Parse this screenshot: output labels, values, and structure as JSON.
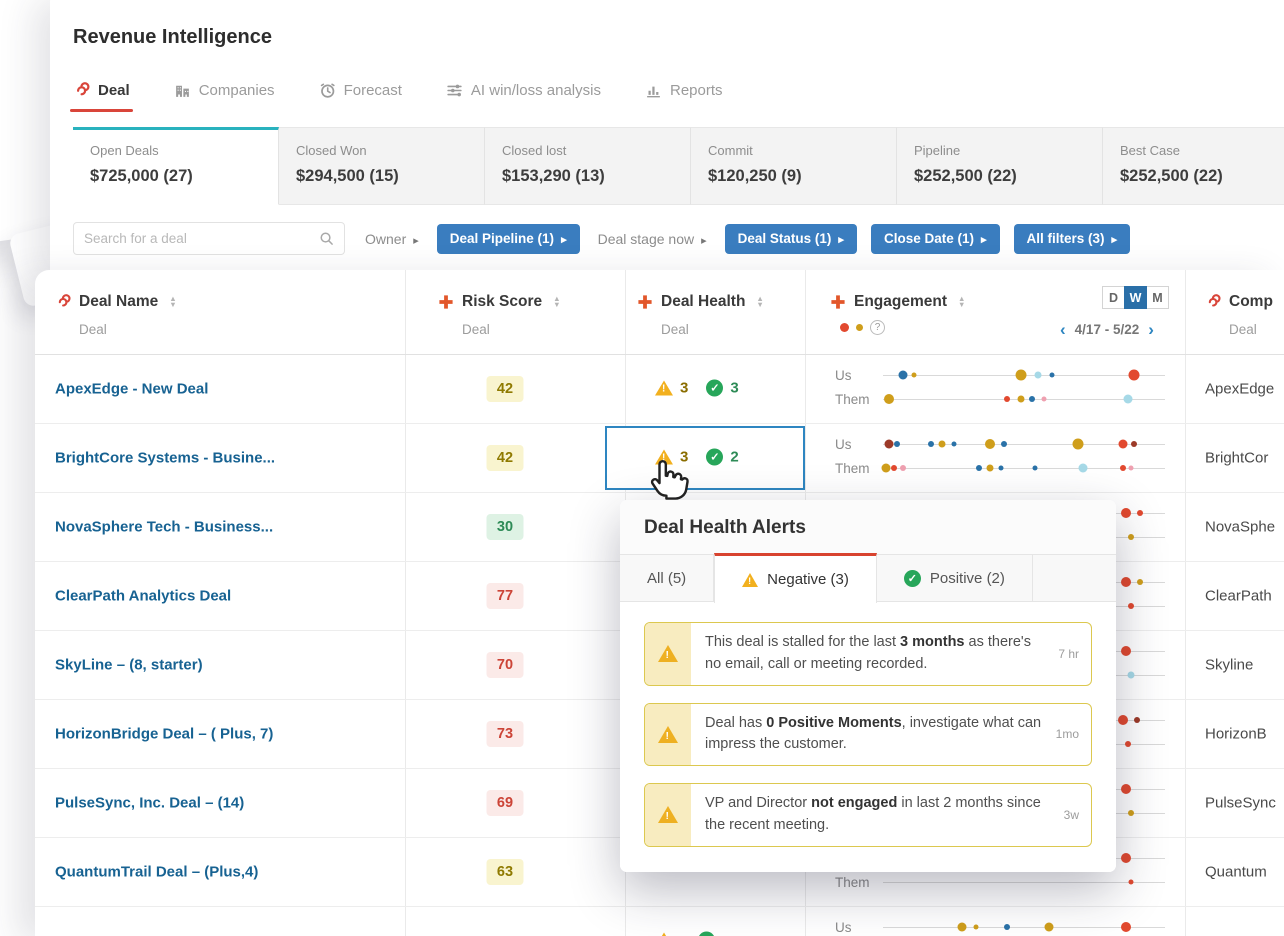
{
  "app": {
    "title": "Revenue Intelligence"
  },
  "nav_tabs": [
    {
      "label": "Deal",
      "icon": "deal-icon",
      "active": true
    },
    {
      "label": "Companies",
      "icon": "companies-icon",
      "active": false
    },
    {
      "label": "Forecast",
      "icon": "forecast-icon",
      "active": false
    },
    {
      "label": "AI win/loss analysis",
      "icon": "ai-winloss-icon",
      "active": false
    },
    {
      "label": "Reports",
      "icon": "reports-icon",
      "active": false
    }
  ],
  "summary_cards": [
    {
      "label": "Open Deals",
      "value": "$725,000 (27)",
      "active": true
    },
    {
      "label": "Closed Won",
      "value": "$294,500 (15)",
      "active": false
    },
    {
      "label": "Closed lost",
      "value": "$153,290 (13)",
      "active": false
    },
    {
      "label": "Commit",
      "value": "$120,250 (9)",
      "active": false
    },
    {
      "label": "Pipeline",
      "value": "$252,500 (22)",
      "active": false
    },
    {
      "label": "Best Case",
      "value": "$252,500 (22)",
      "active": false
    }
  ],
  "filter_bar": {
    "search_placeholder": "Search for a deal",
    "filters": [
      {
        "label": "Owner",
        "active": false
      },
      {
        "label": "Deal Pipeline (1)",
        "active": true
      },
      {
        "label": "Deal stage now",
        "active": false
      },
      {
        "label": "Deal Status (1)",
        "active": true
      },
      {
        "label": "Close Date (1)",
        "active": true
      },
      {
        "label": "All filters (3)",
        "active": true
      }
    ]
  },
  "table": {
    "columns": [
      {
        "label": "Deal Name",
        "sub": "Deal",
        "icon": "deal-icon"
      },
      {
        "label": "Risk Score",
        "sub": "Deal",
        "icon": "plus-icon"
      },
      {
        "label": "Deal Health",
        "sub": "Deal",
        "icon": "plus-icon"
      },
      {
        "label": "Engagement",
        "sub": "",
        "icon": "plus-icon"
      },
      {
        "label": "Comp",
        "sub": "Deal",
        "icon": "deal-icon"
      }
    ],
    "engagement": {
      "toggle": [
        "D",
        "W",
        "M"
      ],
      "toggle_active": "W",
      "range": "4/17 - 5/22",
      "us_label": "Us",
      "them_label": "Them"
    },
    "rows": [
      {
        "name": "ApexEdge - New Deal",
        "risk": 42,
        "risk_level": "yellow",
        "selected": false,
        "health": {
          "neg": 3,
          "pos": 3
        },
        "company": "ApexEdge",
        "us": [
          [
            7,
            "blue",
            9
          ],
          [
            11,
            "gold",
            5
          ],
          [
            49,
            "gold",
            11
          ],
          [
            55,
            "cyan",
            7
          ],
          [
            60,
            "blue",
            5
          ],
          [
            89,
            "red",
            11
          ]
        ],
        "them": [
          [
            2,
            "gold",
            10
          ],
          [
            44,
            "red",
            6
          ],
          [
            49,
            "gold",
            7
          ],
          [
            53,
            "blue",
            6
          ],
          [
            57,
            "pink",
            5
          ],
          [
            87,
            "cyan",
            9
          ]
        ]
      },
      {
        "name": "BrightCore Systems - Busine...",
        "risk": 42,
        "risk_level": "yellow",
        "selected": true,
        "health": {
          "neg": 3,
          "pos": 2
        },
        "company": "BrightCor",
        "us": [
          [
            2,
            "darkred",
            9
          ],
          [
            5,
            "blue",
            6
          ],
          [
            17,
            "blue",
            6
          ],
          [
            21,
            "gold",
            7
          ],
          [
            25,
            "blue",
            5
          ],
          [
            38,
            "gold",
            10
          ],
          [
            43,
            "blue",
            6
          ],
          [
            69,
            "gold",
            11
          ],
          [
            85,
            "red",
            9
          ],
          [
            89,
            "darkred",
            6
          ]
        ],
        "them": [
          [
            1,
            "gold",
            9
          ],
          [
            4,
            "red",
            6
          ],
          [
            7,
            "pink",
            6
          ],
          [
            34,
            "blue",
            6
          ],
          [
            38,
            "gold",
            7
          ],
          [
            42,
            "blue",
            5
          ],
          [
            54,
            "blue",
            5
          ],
          [
            71,
            "cyan",
            9
          ],
          [
            85,
            "red",
            6
          ],
          [
            88,
            "pink",
            5
          ]
        ]
      },
      {
        "name": "NovaSphere Tech - Business...",
        "risk": 30,
        "risk_level": "green",
        "selected": false,
        "health": null,
        "company": "NovaSphe",
        "us": [
          [
            10,
            "gold",
            7
          ],
          [
            40,
            "blue",
            6
          ],
          [
            86,
            "red",
            10
          ],
          [
            91,
            "red",
            6
          ]
        ],
        "them": [
          [
            5,
            "red",
            6
          ],
          [
            50,
            "gold",
            7
          ],
          [
            88,
            "gold",
            6
          ]
        ]
      },
      {
        "name": "ClearPath Analytics Deal",
        "risk": 77,
        "risk_level": "red",
        "selected": false,
        "health": null,
        "company": "ClearPath",
        "us": [
          [
            86,
            "red",
            10
          ],
          [
            91,
            "gold",
            6
          ]
        ],
        "them": [
          [
            88,
            "red",
            6
          ]
        ]
      },
      {
        "name": "SkyLine – (8, starter)",
        "risk": 70,
        "risk_level": "red",
        "selected": false,
        "health": null,
        "company": "Skyline",
        "us": [
          [
            86,
            "red",
            10
          ]
        ],
        "them": [
          [
            88,
            "cyan",
            7
          ]
        ]
      },
      {
        "name": "HorizonBridge Deal – ( Plus, 7)",
        "risk": 73,
        "risk_level": "red",
        "selected": false,
        "health": null,
        "company": "HorizonB",
        "us": [
          [
            85,
            "red",
            10
          ],
          [
            90,
            "darkred",
            6
          ]
        ],
        "them": [
          [
            87,
            "red",
            6
          ]
        ]
      },
      {
        "name": "PulseSync, Inc. Deal – (14)",
        "risk": 69,
        "risk_level": "red",
        "selected": false,
        "health": null,
        "company": "PulseSync",
        "us": [
          [
            86,
            "red",
            10
          ]
        ],
        "them": [
          [
            88,
            "gold",
            6
          ]
        ]
      },
      {
        "name": "QuantumTrail Deal – (Plus,4)",
        "risk": 63,
        "risk_level": "yellow",
        "selected": false,
        "health": null,
        "company": "Quantum",
        "us": [
          [
            86,
            "red",
            10
          ]
        ],
        "them": [
          [
            88,
            "red",
            5
          ]
        ]
      },
      {
        "name": "",
        "risk": null,
        "risk_level": "",
        "selected": false,
        "health": {
          "neg": "",
          "pos": ""
        },
        "company": "",
        "us": [
          [
            28,
            "gold",
            9
          ],
          [
            33,
            "gold",
            5
          ],
          [
            44,
            "blue",
            6
          ],
          [
            59,
            "gold",
            9
          ],
          [
            86,
            "red",
            10
          ]
        ],
        "them": [
          [
            40,
            "blue",
            6
          ]
        ]
      }
    ]
  },
  "popup": {
    "title": "Deal Health Alerts",
    "tabs": [
      {
        "label": "All (5)",
        "icon": "",
        "active": false
      },
      {
        "label": "Negative (3)",
        "icon": "warning-icon",
        "active": true
      },
      {
        "label": "Positive (2)",
        "icon": "check-icon",
        "active": false
      }
    ],
    "alerts": [
      {
        "segments": [
          {
            "t": "This deal is stalled for the last "
          },
          {
            "t": "3 months",
            "b": true
          },
          {
            "t": " as there's no email, call or meeting recorded."
          }
        ],
        "time": "7 hr"
      },
      {
        "segments": [
          {
            "t": "Deal has "
          },
          {
            "t": "0 Positive Moments",
            "b": true
          },
          {
            "t": ", investigate what can impress the customer."
          }
        ],
        "time": "1mo"
      },
      {
        "segments": [
          {
            "t": "VP and Director "
          },
          {
            "t": "not engaged",
            "b": true
          },
          {
            "t": " in last 2 months since the recent meeting."
          }
        ],
        "time": "3w"
      }
    ]
  },
  "colors": {
    "accent_red": "#d9453a",
    "accent_teal": "#29b2be",
    "filter_blue": "#3a7dbf",
    "toggle_blue": "#2a6fa8",
    "dot": {
      "red": "#e2492f",
      "blue": "#2a72a8",
      "gold": "#cf9e1b",
      "cyan": "#a6d9e7",
      "pink": "#efa0b0",
      "darkred": "#9c3a28"
    }
  }
}
